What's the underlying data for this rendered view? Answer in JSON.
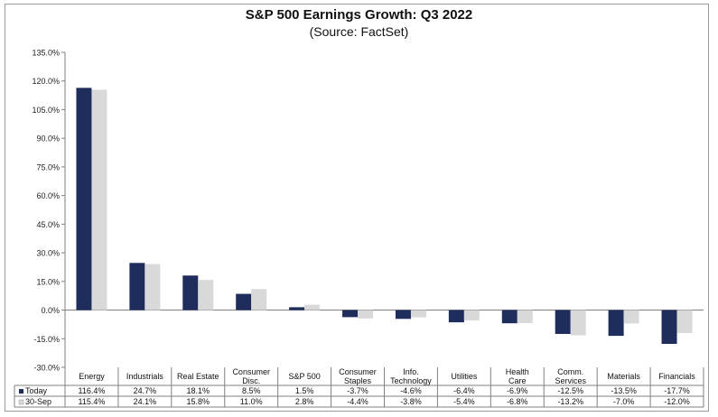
{
  "chart_data": {
    "type": "bar",
    "title": "S&P 500 Earnings Growth: Q3 2022",
    "subtitle": "(Source: FactSet)",
    "categories": [
      [
        "Energy"
      ],
      [
        "Industrials"
      ],
      [
        "Real Estate"
      ],
      [
        "Consumer",
        "Disc."
      ],
      [
        "S&P 500"
      ],
      [
        "Consumer",
        "Staples"
      ],
      [
        "Info.",
        "Technology"
      ],
      [
        "Utilities"
      ],
      [
        "Health",
        "Care"
      ],
      [
        "Comm.",
        "Services"
      ],
      [
        "Materials"
      ],
      [
        "Financials"
      ]
    ],
    "series": [
      {
        "name": "Today",
        "color": "#1f2d5c",
        "values": [
          116.4,
          24.7,
          18.1,
          8.5,
          1.5,
          -3.7,
          -4.6,
          -6.4,
          -6.9,
          -12.5,
          -13.5,
          -17.7
        ],
        "labels": [
          "116.4%",
          "24.7%",
          "18.1%",
          "8.5%",
          "1.5%",
          "-3.7%",
          "-4.6%",
          "-6.4%",
          "-6.9%",
          "-12.5%",
          "-13.5%",
          "-17.7%"
        ]
      },
      {
        "name": "30-Sep",
        "color": "#d9d9d9",
        "values": [
          115.4,
          24.1,
          15.8,
          11.0,
          2.8,
          -4.4,
          -3.8,
          -5.4,
          -6.8,
          -13.2,
          -7.0,
          -12.0
        ],
        "labels": [
          "115.4%",
          "24.1%",
          "15.8%",
          "11.0%",
          "2.8%",
          "-4.4%",
          "-3.8%",
          "-5.4%",
          "-6.8%",
          "-13.2%",
          "-7.0%",
          "-12.0%"
        ]
      }
    ],
    "ylim": [
      -30,
      135
    ],
    "yticks": [
      135,
      120,
      105,
      90,
      75,
      60,
      45,
      30,
      15,
      0,
      -15,
      -30
    ],
    "ytick_labels": [
      "135.0%",
      "120.0%",
      "105.0%",
      "90.0%",
      "75.0%",
      "60.0%",
      "45.0%",
      "30.0%",
      "15.0%",
      "0.0%",
      "-15.0%",
      "-30.0%"
    ],
    "grid": false,
    "legend": "data-table"
  }
}
